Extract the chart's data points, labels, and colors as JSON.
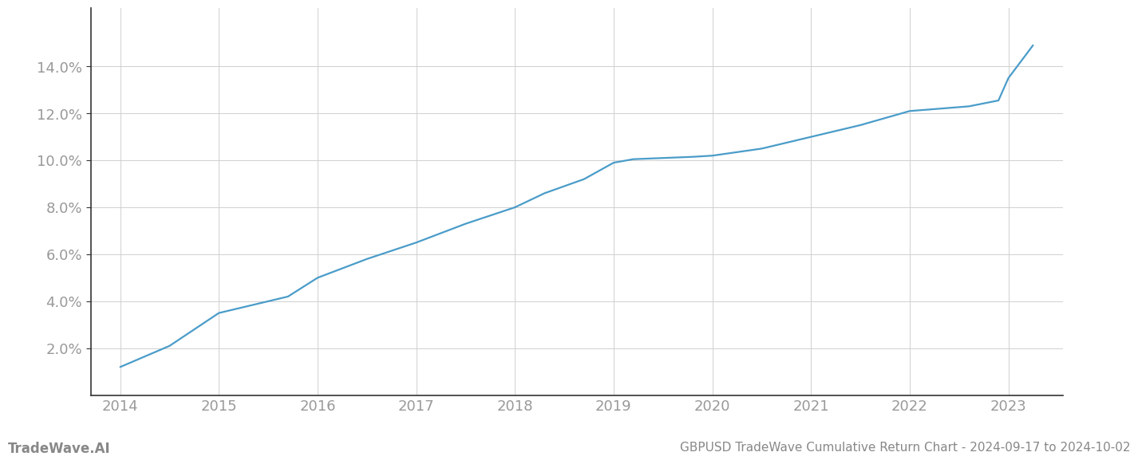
{
  "x_years": [
    2014,
    2014.5,
    2015,
    2015.3,
    2015.7,
    2016,
    2016.5,
    2017,
    2017.5,
    2018,
    2018.3,
    2018.7,
    2019,
    2019.2,
    2019.5,
    2019.8,
    2020,
    2020.5,
    2021,
    2021.5,
    2022,
    2022.3,
    2022.6,
    2022.9,
    2023,
    2023.25
  ],
  "y_values": [
    0.012,
    0.021,
    0.035,
    0.038,
    0.042,
    0.05,
    0.058,
    0.065,
    0.073,
    0.08,
    0.086,
    0.092,
    0.099,
    0.1005,
    0.101,
    0.1015,
    0.102,
    0.105,
    0.11,
    0.115,
    0.121,
    0.122,
    0.123,
    0.1255,
    0.135,
    0.149
  ],
  "line_color": "#4a9cc9",
  "line_width": 1.6,
  "background_color": "#ffffff",
  "grid_color": "#d0d0d0",
  "title": "GBPUSD TradeWave Cumulative Return Chart - 2024-09-17 to 2024-10-02",
  "watermark_left": "TradeWave.AI",
  "xlim": [
    2013.7,
    2023.55
  ],
  "ylim": [
    0.0,
    0.165
  ],
  "yticks": [
    0.02,
    0.04,
    0.06,
    0.08,
    0.1,
    0.12,
    0.14
  ],
  "xticks": [
    2014,
    2015,
    2016,
    2017,
    2018,
    2019,
    2020,
    2021,
    2022,
    2023
  ],
  "tick_label_color": "#999999",
  "left_spine_color": "#333333",
  "bottom_spine_color": "#333333",
  "watermark_color": "#888888",
  "title_fontsize": 11,
  "tick_fontsize": 13,
  "watermark_fontsize": 12
}
